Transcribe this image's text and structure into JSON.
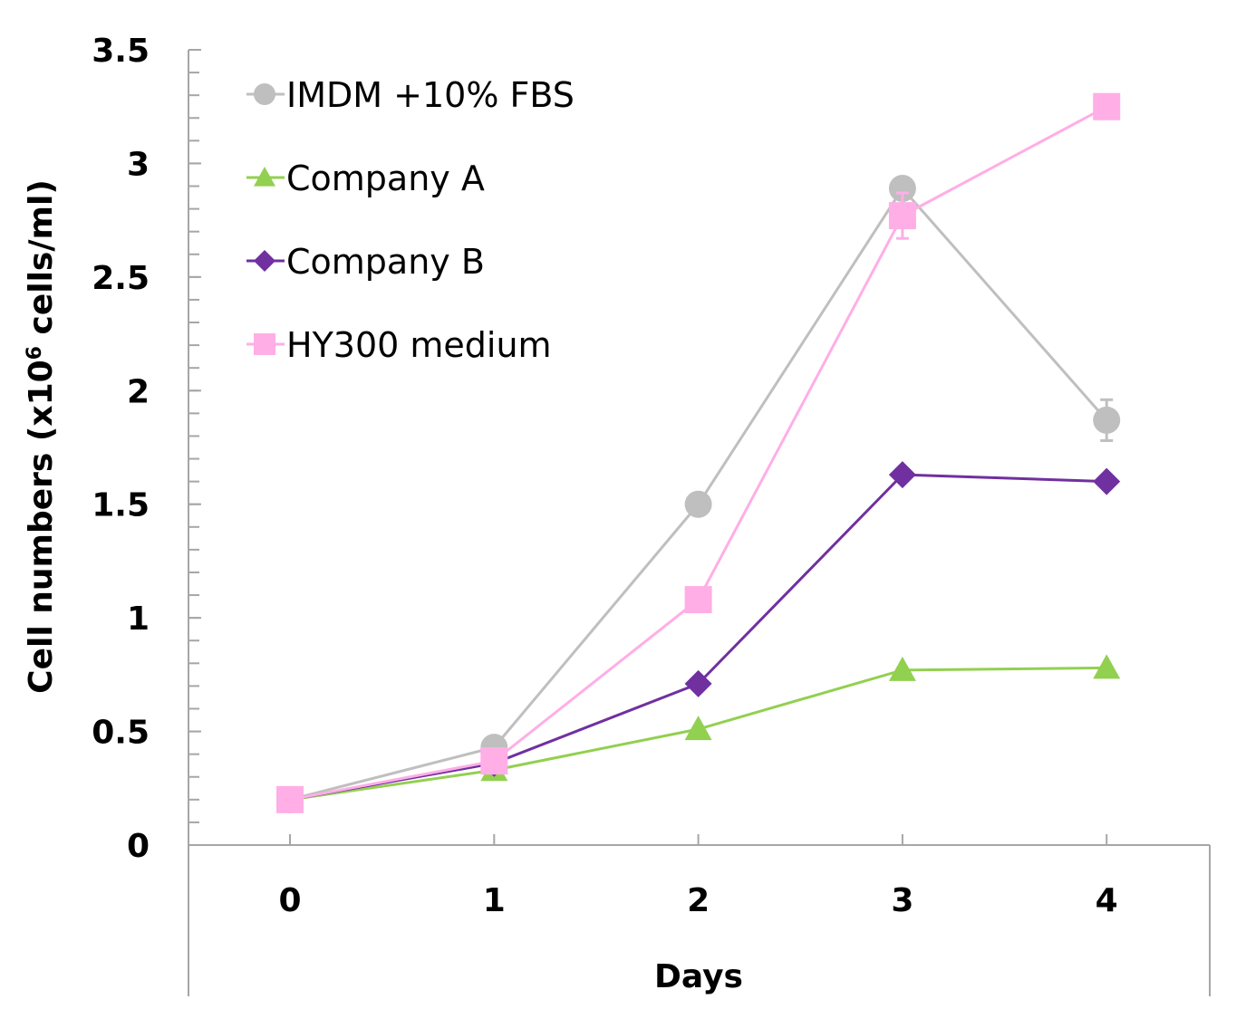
{
  "chart_data": {
    "type": "line",
    "title": "",
    "xlabel": "Days",
    "ylabel": "Cell numbers (x10",
    "ylabel_superscript": "6",
    "ylabel_suffix": " cells/ml)",
    "x": [
      0,
      1,
      2,
      3,
      4
    ],
    "x_tick_labels": [
      "0",
      "1",
      "2",
      "3",
      "4"
    ],
    "ylim": [
      0,
      3.5
    ],
    "y_ticks": [
      0,
      0.5,
      1,
      1.5,
      2,
      2.5,
      3,
      3.5
    ],
    "y_tick_labels": [
      "0",
      "0.5",
      "1",
      "1.5",
      "2",
      "2.5",
      "3",
      "3.5"
    ],
    "y_minor_tick_step": 0.1,
    "grid": false,
    "legend_position": "top-left",
    "series": [
      {
        "name": "IMDM +10% FBS",
        "marker": "circle",
        "color": "#bfbfbf",
        "values": [
          0.2,
          0.43,
          1.5,
          2.89,
          1.87
        ],
        "errors": [
          0,
          0,
          0,
          0,
          0.09
        ]
      },
      {
        "name": "Company A",
        "marker": "triangle",
        "color": "#92d050",
        "values": [
          0.2,
          0.33,
          0.51,
          0.77,
          0.78
        ],
        "errors": [
          0,
          0,
          0,
          0,
          0
        ]
      },
      {
        "name": "Company B",
        "marker": "diamond",
        "color": "#7030a0",
        "values": [
          0.2,
          0.36,
          0.71,
          1.63,
          1.6
        ],
        "errors": [
          0,
          0,
          0,
          0,
          0
        ]
      },
      {
        "name": "HY300 medium",
        "marker": "square",
        "color": "#ffaee6",
        "values": [
          0.2,
          0.37,
          1.08,
          2.77,
          3.25
        ],
        "errors": [
          0,
          0,
          0,
          0.1,
          0
        ]
      }
    ]
  }
}
